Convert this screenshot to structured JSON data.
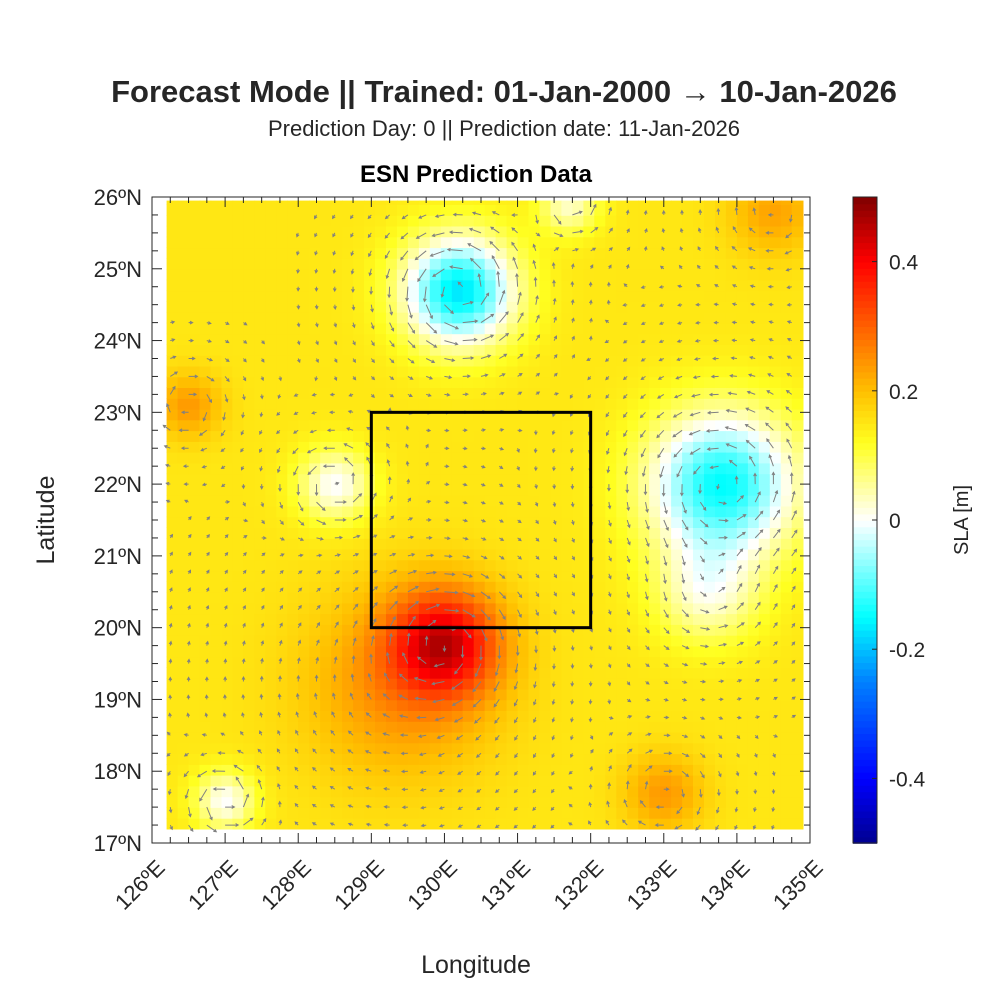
{
  "chart_data": {
    "type": "heatmap",
    "title": "Forecast Mode || Trained: 01-Jan-2000 → 10-Jan-2026",
    "subtitle": "Prediction Day: 0 || Prediction date: 11-Jan-2026",
    "axes_title": "ESN Prediction Data",
    "xlabel": "Longitude",
    "ylabel": "Latitude",
    "xlim": [
      126,
      135
    ],
    "ylim": [
      17,
      26
    ],
    "data_extent": {
      "lon": [
        126.2,
        134.9
      ],
      "lat": [
        17.2,
        25.95
      ]
    },
    "xticks": [
      126,
      127,
      128,
      129,
      130,
      131,
      132,
      133,
      134,
      135
    ],
    "xtick_labels": [
      "126ºE",
      "127ºE",
      "128ºE",
      "129ºE",
      "130ºE",
      "131ºE",
      "132ºE",
      "133ºE",
      "134ºE",
      "135ºE"
    ],
    "yticks": [
      26,
      25,
      24,
      23,
      22,
      21,
      20,
      19,
      18,
      17
    ],
    "ytick_labels": [
      "26ºN",
      "25ºN",
      "24ºN",
      "23ºN",
      "22ºN",
      "21ºN",
      "20ºN",
      "19ºN",
      "18ºN",
      "17ºN"
    ],
    "colorbar": {
      "label": "SLA [m]",
      "clim": [
        -0.5,
        0.5
      ],
      "ticks": [
        0.4,
        0.2,
        0,
        -0.2,
        -0.4
      ],
      "tick_labels": [
        "0.4",
        "0.2",
        "0",
        "-0.2",
        "-0.4"
      ],
      "colormap": [
        [
          -0.5,
          "#00008f"
        ],
        [
          -0.4,
          "#0000ff"
        ],
        [
          -0.25,
          "#0080ff"
        ],
        [
          -0.15,
          "#00ffff"
        ],
        [
          0,
          "#ffffff"
        ],
        [
          0.12,
          "#ffff20"
        ],
        [
          0.2,
          "#ffc000"
        ],
        [
          0.3,
          "#ff6000"
        ],
        [
          0.4,
          "#ff0000"
        ],
        [
          0.5,
          "#800000"
        ]
      ]
    },
    "field_model": {
      "background_sla": 0.15,
      "eddies": [
        {
          "lon": 130.2,
          "lat": 24.7,
          "amp": -0.32,
          "radius": 0.75
        },
        {
          "lon": 133.8,
          "lat": 22.0,
          "amp": -0.3,
          "radius": 1.0
        },
        {
          "lon": 133.6,
          "lat": 20.5,
          "amp": -0.12,
          "radius": 0.7
        },
        {
          "lon": 130.0,
          "lat": 19.8,
          "amp": 0.25,
          "radius": 0.75
        },
        {
          "lon": 129.4,
          "lat": 19.2,
          "amp": 0.1,
          "radius": 1.3
        },
        {
          "lon": 126.5,
          "lat": 23.1,
          "amp": 0.09,
          "radius": 0.45
        },
        {
          "lon": 133.0,
          "lat": 17.7,
          "amp": 0.09,
          "radius": 0.55
        },
        {
          "lon": 134.5,
          "lat": 25.8,
          "amp": 0.08,
          "radius": 0.6
        },
        {
          "lon": 128.5,
          "lat": 22.0,
          "amp": -0.15,
          "radius": 0.5
        },
        {
          "lon": 127.0,
          "lat": 17.6,
          "amp": -0.15,
          "radius": 0.4
        },
        {
          "lon": 131.7,
          "lat": 25.9,
          "amp": -0.12,
          "radius": 0.4
        }
      ],
      "grid_step_deg": 0.15,
      "quiver_step_deg": 0.25
    },
    "region_box": {
      "lon": [
        129,
        132
      ],
      "lat": [
        20,
        23
      ],
      "color": "#000000"
    },
    "quiver_color": "#808080"
  }
}
